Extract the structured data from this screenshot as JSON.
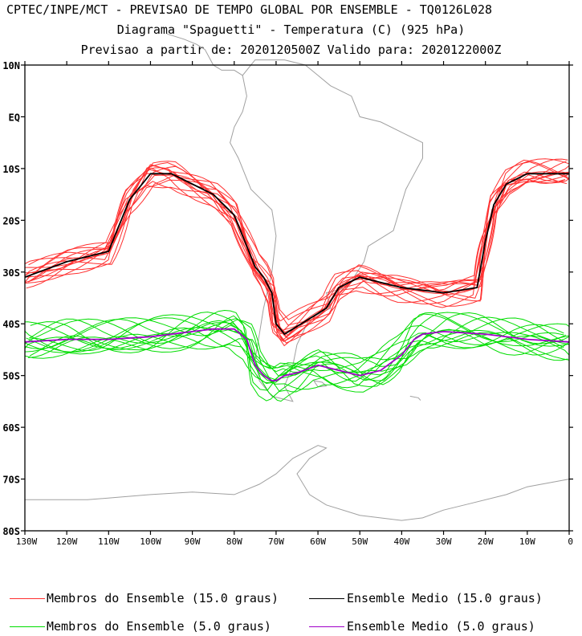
{
  "header": {
    "line1": "CPTEC/INPE/MCT - PREVISAO DE TEMPO GLOBAL POR ENSEMBLE - TQ0126L028",
    "line2": "Diagrama \"Spaguetti\" - Temperatura (C) (925 hPa)",
    "line3": "Previsao a partir de: 2020120500Z  Valido para: 2020122000Z"
  },
  "map": {
    "lat_ticks": [
      "10N",
      "EQ",
      "10S",
      "20S",
      "30S",
      "40S",
      "50S",
      "60S",
      "70S",
      "80S"
    ],
    "lon_ticks": [
      "130W",
      "120W",
      "110W",
      "100W",
      "90W",
      "80W",
      "70W",
      "60W",
      "50W",
      "40W",
      "30W",
      "20W",
      "10W",
      "0"
    ],
    "lon_range": [
      -130,
      0
    ],
    "lat_range": [
      -80,
      10
    ]
  },
  "legend": {
    "members_15": "Membros do Ensemble (15.0 graus)",
    "mean_15": "Ensemble Medio (15.0 graus)",
    "members_5": "Membros do Ensemble (5.0 graus)",
    "mean_5": "Ensemble Medio (5.0 graus)"
  },
  "colors": {
    "members_15": "#ff3030",
    "mean_15": "#000000",
    "members_5": "#00dd00",
    "mean_5": "#a000c8",
    "coast": "#a0a0a0"
  },
  "chart_data": {
    "type": "line",
    "series": [
      {
        "name": "Ensemble Medio (15.0 graus)",
        "lon": [
          -130,
          -120,
          -110,
          -105,
          -100,
          -95,
          -90,
          -85,
          -80,
          -77,
          -75,
          -73,
          -71,
          -70,
          -68,
          -66,
          -62,
          -58,
          -55,
          -50,
          -45,
          -40,
          -30,
          -22,
          -20,
          -18,
          -15,
          -10,
          -5,
          0
        ],
        "lat": [
          -31,
          -28,
          -26,
          -16,
          -11,
          -11,
          -13,
          -15,
          -19,
          -25,
          -29,
          -31,
          -34,
          -40,
          -42,
          -41,
          -39,
          -37,
          -33,
          -31,
          -32,
          -33,
          -34,
          -33,
          -24,
          -17,
          -13,
          -11,
          -11,
          -11
        ]
      },
      {
        "name": "Ensemble Medio (5.0 graus)",
        "lon": [
          -130,
          -120,
          -110,
          -100,
          -90,
          -85,
          -80,
          -77,
          -75,
          -73,
          -71,
          -70,
          -68,
          -65,
          -60,
          -55,
          -50,
          -45,
          -40,
          -37,
          -35,
          -30,
          -20,
          -10,
          0
        ],
        "lat": [
          -43.5,
          -43,
          -43,
          -42.5,
          -41.5,
          -41,
          -41,
          -43,
          -48,
          -50,
          -51,
          -51,
          -50,
          -49.5,
          -48,
          -49,
          -50,
          -49,
          -46,
          -43,
          -42,
          -41.5,
          -42,
          -43,
          -43.5
        ]
      }
    ]
  }
}
